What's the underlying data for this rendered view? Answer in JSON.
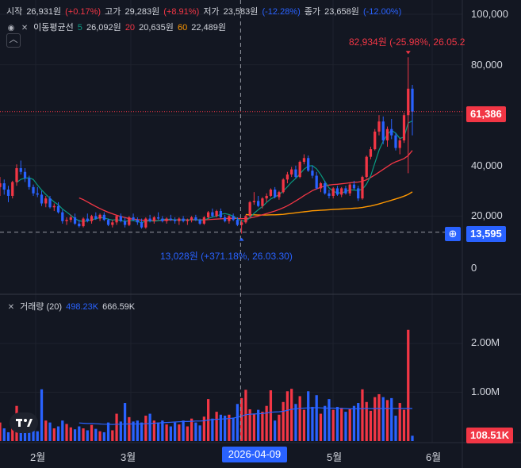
{
  "header": {
    "open_label": "시작",
    "open_value": "26,931원",
    "open_change": "(+0.17%)",
    "high_label": "고가",
    "high_value": "29,283원",
    "high_change": "(+8.91%)",
    "low_label": "저가",
    "low_value": "23,583원",
    "low_change": "(-12.28%)",
    "close_label": "종가",
    "close_value": "23,658원",
    "close_change": "(-12.00%)"
  },
  "ma_legend": {
    "label": "이동평균선",
    "p5": "5",
    "v5": "26,092원",
    "p20": "20",
    "v20": "20,635원",
    "p60": "60",
    "v60": "22,489원"
  },
  "volume_legend": {
    "label": "거래량 (20)",
    "v1": "498.23K",
    "v2": "666.59K"
  },
  "annotations": {
    "high": "82,934원 (-25.98%, 26.05.2",
    "low": "13,028원 (+371.18%, 26.03.30)"
  },
  "price_axis": [
    "100,000",
    "80,000",
    "60,000",
    "40,000",
    "20,000",
    "0"
  ],
  "volume_axis": [
    "2.00M",
    "1.00M"
  ],
  "last_price_tag": "61,386",
  "crosshair_price_tag": "13,595",
  "volume_tag": "108.51K",
  "x_axis": [
    "2월",
    "3월",
    "5월",
    "6월"
  ],
  "crosshair_date": "2026-04-09",
  "colors": {
    "up": "#f23645",
    "down": "#2962ff",
    "ma5": "#089981",
    "ma20": "#f23645",
    "ma60": "#ff9800",
    "vol_ma": "#2962ff",
    "bg": "#131722"
  },
  "chart_data": {
    "type": "candlestick",
    "price_range": [
      0,
      100000
    ],
    "volume_range": [
      0,
      2000000
    ],
    "candles": [
      [
        31500,
        35500,
        28000,
        33000,
        380000
      ],
      [
        33000,
        34500,
        28500,
        30500,
        260000
      ],
      [
        30500,
        32000,
        25500,
        28000,
        180000
      ],
      [
        28000,
        34000,
        27000,
        33500,
        300000
      ],
      [
        33500,
        40500,
        32000,
        39000,
        720000
      ],
      [
        39000,
        42000,
        36500,
        37500,
        460000
      ],
      [
        37500,
        39000,
        33500,
        35000,
        350000
      ],
      [
        35000,
        36000,
        30500,
        31500,
        280000
      ],
      [
        31500,
        32500,
        28000,
        29000,
        240000
      ],
      [
        29000,
        31500,
        27500,
        28500,
        200000
      ],
      [
        28500,
        30000,
        24000,
        25000,
        1060000
      ],
      [
        25000,
        28000,
        23500,
        27000,
        420000
      ],
      [
        27000,
        28000,
        23000,
        23500,
        380000
      ],
      [
        23500,
        25000,
        22000,
        24000,
        260000
      ],
      [
        24000,
        25500,
        21000,
        21500,
        300000
      ],
      [
        21500,
        22500,
        17000,
        18000,
        420000
      ],
      [
        18000,
        19500,
        16500,
        18500,
        350000
      ],
      [
        18500,
        20500,
        17500,
        19500,
        280000
      ],
      [
        19500,
        21000,
        16500,
        17000,
        240000
      ],
      [
        17000,
        18500,
        15500,
        16000,
        300000
      ],
      [
        16000,
        19500,
        15500,
        19000,
        260000
      ],
      [
        19000,
        21000,
        17500,
        18000,
        220000
      ],
      [
        18000,
        20500,
        17000,
        20000,
        330000
      ],
      [
        20000,
        21500,
        18500,
        19000,
        250000
      ],
      [
        19000,
        21000,
        18000,
        20500,
        200000
      ],
      [
        20500,
        21500,
        18000,
        18500,
        180000
      ],
      [
        18500,
        19000,
        16000,
        16500,
        380000
      ],
      [
        16500,
        18500,
        15500,
        17500,
        220000
      ],
      [
        17500,
        20500,
        16500,
        20000,
        560000
      ],
      [
        20000,
        21000,
        17500,
        18000,
        400000
      ],
      [
        18000,
        19500,
        15500,
        16500,
        780000
      ],
      [
        16500,
        20000,
        16000,
        19500,
        490000
      ],
      [
        19500,
        21000,
        18000,
        18500,
        400000
      ],
      [
        18500,
        19500,
        16500,
        17500,
        420000
      ],
      [
        17500,
        19000,
        15000,
        15500,
        380000
      ],
      [
        15500,
        19500,
        15000,
        19000,
        520000
      ],
      [
        19000,
        20500,
        17500,
        18000,
        560000
      ],
      [
        18000,
        20000,
        17000,
        19500,
        420000
      ],
      [
        19500,
        21500,
        18500,
        19000,
        380000
      ],
      [
        19000,
        20000,
        17500,
        18000,
        420000
      ],
      [
        18000,
        19500,
        17000,
        19000,
        340000
      ],
      [
        19000,
        20500,
        18000,
        18500,
        300000
      ],
      [
        18500,
        19500,
        17000,
        18000,
        380000
      ],
      [
        18000,
        19500,
        16500,
        19000,
        340000
      ],
      [
        19000,
        20000,
        17500,
        18000,
        420000
      ],
      [
        18000,
        19000,
        16500,
        18500,
        300000
      ],
      [
        18500,
        20000,
        17500,
        19500,
        460000
      ],
      [
        19500,
        20500,
        18000,
        18500,
        380000
      ],
      [
        18500,
        19000,
        16500,
        17000,
        320000
      ],
      [
        17000,
        20000,
        16500,
        19500,
        500000
      ],
      [
        19500,
        22000,
        19000,
        21500,
        860000
      ],
      [
        21500,
        23000,
        19500,
        20000,
        460000
      ],
      [
        20000,
        22500,
        19500,
        22000,
        600000
      ],
      [
        22000,
        23000,
        19000,
        19500,
        540000
      ],
      [
        19500,
        20500,
        17500,
        18000,
        520000
      ],
      [
        18000,
        20500,
        17000,
        20000,
        540000
      ],
      [
        20000,
        21000,
        18000,
        18500,
        480000
      ],
      [
        18500,
        19500,
        16000,
        16500,
        760000
      ],
      [
        16500,
        18500,
        13028,
        17500,
        880000
      ],
      [
        17500,
        20500,
        17000,
        20000,
        1050000
      ],
      [
        20000,
        26000,
        19500,
        25500,
        650000
      ],
      [
        25500,
        29500,
        24500,
        26000,
        560000
      ],
      [
        26000,
        28000,
        23500,
        24000,
        640000
      ],
      [
        24000,
        27500,
        23000,
        27000,
        600000
      ],
      [
        27000,
        29000,
        25500,
        28000,
        720000
      ],
      [
        28000,
        31000,
        27500,
        30500,
        1040000
      ],
      [
        30500,
        31500,
        27000,
        27500,
        420000
      ],
      [
        27500,
        30000,
        26500,
        29500,
        540000
      ],
      [
        29500,
        35000,
        29000,
        34500,
        800000
      ],
      [
        34500,
        37500,
        33000,
        36500,
        1020000
      ],
      [
        36500,
        39500,
        35500,
        38500,
        1070000
      ],
      [
        38500,
        40000,
        35000,
        35500,
        760000
      ],
      [
        35500,
        42000,
        35000,
        41500,
        920000
      ],
      [
        41500,
        44500,
        40500,
        43000,
        640000
      ],
      [
        43000,
        44000,
        37500,
        38000,
        1020000
      ],
      [
        38000,
        40000,
        35000,
        36000,
        700000
      ],
      [
        36000,
        37500,
        30500,
        31000,
        940000
      ],
      [
        31000,
        33500,
        29500,
        33000,
        560000
      ],
      [
        33000,
        34000,
        28500,
        29000,
        720000
      ],
      [
        29000,
        30500,
        27000,
        28000,
        860000
      ],
      [
        28000,
        31500,
        27000,
        31000,
        640000
      ],
      [
        31000,
        32000,
        28000,
        28500,
        700000
      ],
      [
        28500,
        31500,
        27500,
        31000,
        680000
      ],
      [
        31000,
        32000,
        28500,
        29000,
        600000
      ],
      [
        29000,
        33000,
        28000,
        32500,
        660000
      ],
      [
        32500,
        34000,
        30500,
        31000,
        720000
      ],
      [
        31000,
        32000,
        26000,
        27000,
        780000
      ],
      [
        27000,
        36000,
        26500,
        35500,
        1060000
      ],
      [
        35500,
        44000,
        35000,
        43500,
        800000
      ],
      [
        43500,
        47500,
        42500,
        46500,
        620000
      ],
      [
        46500,
        54500,
        46000,
        53500,
        900000
      ],
      [
        53500,
        60000,
        52000,
        57500,
        960000
      ],
      [
        57500,
        59500,
        48500,
        50000,
        900000
      ],
      [
        50000,
        55500,
        47500,
        54500,
        840000
      ],
      [
        54500,
        58500,
        50500,
        52000,
        880000
      ],
      [
        52000,
        53000,
        46000,
        47000,
        520000
      ],
      [
        47000,
        51000,
        44500,
        50000,
        780000
      ],
      [
        50000,
        61000,
        49000,
        60000,
        640000
      ],
      [
        60000,
        82934,
        37000,
        70500,
        2280000
      ],
      [
        70500,
        72000,
        52000,
        61386,
        108510
      ]
    ],
    "ma5": [
      null,
      null,
      null,
      null,
      33300,
      34600,
      35000,
      35200,
      34500,
      32300,
      30300,
      28600,
      27000,
      25600,
      24500,
      22800,
      21600,
      20300,
      19000,
      18100,
      17900,
      18100,
      18600,
      18900,
      19500,
      19200,
      18800,
      18400,
      18600,
      18200,
      17900,
      18200,
      18200,
      17900,
      17400,
      18000,
      18100,
      18000,
      18100,
      18700,
      18700,
      18700,
      18500,
      18500,
      18500,
      18400,
      18600,
      18600,
      18400,
      18400,
      19100,
      19600,
      20000,
      20700,
      21000,
      20600,
      20000,
      18900,
      18100,
      18000,
      19400,
      21100,
      22500,
      23800,
      25400,
      26800,
      27600,
      28500,
      29900,
      31600,
      33500,
      34900,
      36700,
      38600,
      39800,
      40000,
      38700,
      36500,
      33700,
      31200,
      29800,
      29200,
      29200,
      29700,
      30400,
      30300,
      30200,
      30600,
      32700,
      35900,
      41000,
      46100,
      49700,
      52400,
      54000,
      52900,
      50800,
      51300,
      56900,
      57700
    ],
    "ma20": [
      null,
      null,
      null,
      null,
      null,
      null,
      null,
      null,
      null,
      null,
      null,
      null,
      null,
      null,
      null,
      null,
      null,
      null,
      null,
      27200,
      26500,
      25600,
      24700,
      23800,
      23000,
      22200,
      21500,
      20900,
      20300,
      19800,
      19400,
      19000,
      18800,
      18600,
      18400,
      18300,
      18200,
      18200,
      18200,
      18300,
      18400,
      18500,
      18500,
      18500,
      18500,
      18500,
      18500,
      18500,
      18500,
      18500,
      18600,
      18700,
      18800,
      18900,
      19000,
      19100,
      19100,
      19100,
      19000,
      19000,
      19200,
      19600,
      20000,
      20500,
      21000,
      21500,
      22000,
      22600,
      23300,
      24100,
      25000,
      26000,
      27000,
      28100,
      29100,
      30100,
      30800,
      31400,
      31900,
      32300,
      32500,
      32600,
      32800,
      33000,
      33200,
      33400,
      33500,
      33800,
      34400,
      35300,
      36300,
      37400,
      38500,
      39600,
      40700,
      41500,
      42100,
      42800,
      44000,
      46000
    ],
    "ma60": [
      null,
      null,
      null,
      null,
      null,
      null,
      null,
      null,
      null,
      null,
      null,
      null,
      null,
      null,
      null,
      null,
      null,
      null,
      null,
      null,
      null,
      null,
      null,
      null,
      null,
      null,
      null,
      null,
      null,
      null,
      null,
      null,
      null,
      null,
      null,
      null,
      null,
      null,
      null,
      null,
      null,
      null,
      null,
      null,
      null,
      null,
      null,
      null,
      null,
      null,
      null,
      null,
      null,
      null,
      null,
      null,
      null,
      null,
      null,
      20600,
      20500,
      20500,
      20400,
      20400,
      20400,
      20500,
      20500,
      20600,
      20700,
      20900,
      21100,
      21300,
      21500,
      21700,
      21900,
      22100,
      22200,
      22300,
      22400,
      22500,
      22600,
      22700,
      22800,
      22900,
      23000,
      23100,
      23200,
      23400,
      23700,
      24000,
      24400,
      24800,
      25300,
      25800,
      26300,
      26800,
      27300,
      27900,
      28600,
      29600
    ],
    "vol_ma": [
      null,
      null,
      null,
      null,
      null,
      null,
      null,
      null,
      null,
      null,
      null,
      null,
      null,
      null,
      null,
      null,
      null,
      null,
      null,
      370000,
      365000,
      360000,
      360000,
      355000,
      350000,
      345000,
      345000,
      340000,
      345000,
      345000,
      350000,
      350000,
      350000,
      350000,
      350000,
      355000,
      360000,
      365000,
      370000,
      375000,
      380000,
      385000,
      390000,
      395000,
      400000,
      400000,
      405000,
      410000,
      410000,
      415000,
      430000,
      440000,
      445000,
      450000,
      455000,
      460000,
      470000,
      490000,
      510000,
      540000,
      550000,
      555000,
      560000,
      565000,
      575000,
      590000,
      595000,
      600000,
      610000,
      630000,
      650000,
      660000,
      670000,
      675000,
      680000,
      680000,
      685000,
      680000,
      675000,
      675000,
      675000,
      670000,
      670000,
      665000,
      660000,
      660000,
      660000,
      665000,
      670000,
      665000,
      666590,
      666590,
      666590,
      666590,
      666590,
      666590,
      666590,
      666590,
      666590,
      666590
    ]
  }
}
